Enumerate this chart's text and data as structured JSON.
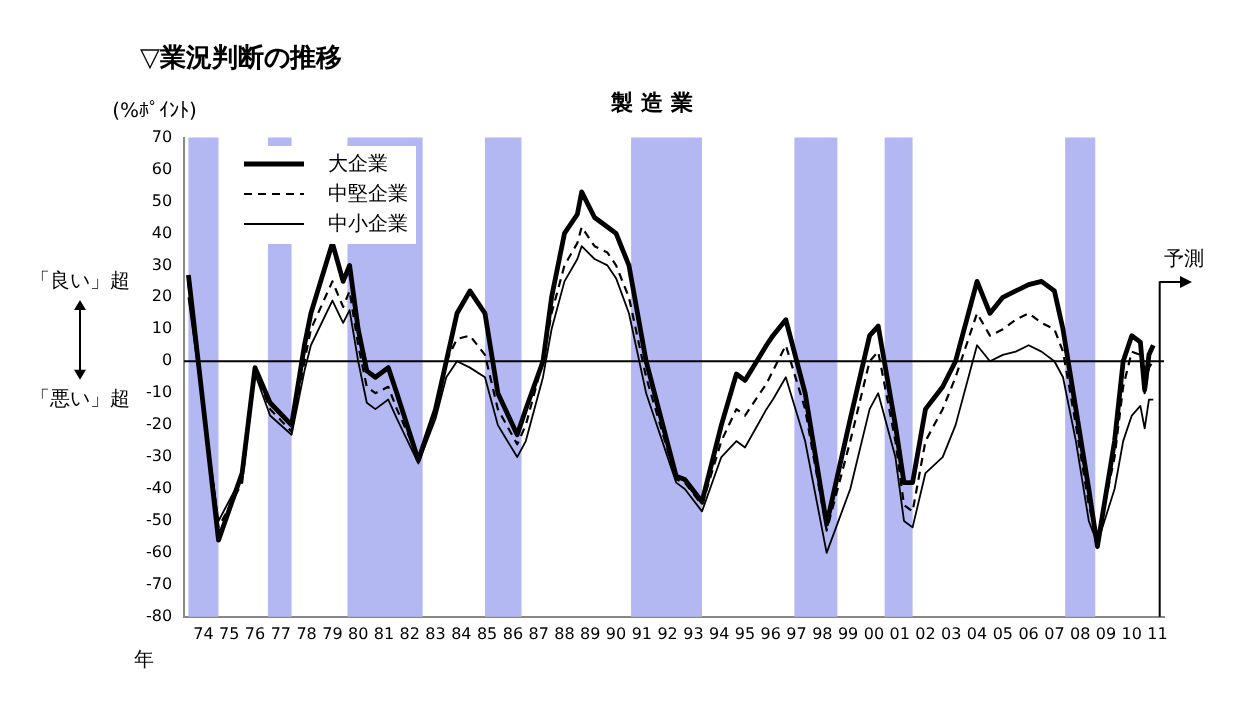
{
  "chart_data": {
    "type": "line",
    "title": "▽業況判断の推移",
    "subtitle": "製 造 業",
    "ylabel": "(%ﾎﾟｲﾝﾄ)",
    "xlabel": "年",
    "annotations": [
      "「良い」超",
      "「悪い」超"
    ],
    "x": [
      "1973-12",
      "1975-02",
      "1976-01",
      "1976-07",
      "1977-02",
      "1977-12",
      "1978-06",
      "1978-09",
      "1979-07",
      "1979-12",
      "1980-03",
      "1980-07",
      "1980-11",
      "1981-03",
      "1981-09",
      "1982-01",
      "1982-11",
      "1983-07",
      "1983-12",
      "1984-05",
      "1984-11",
      "1985-06",
      "1985-12",
      "1986-09",
      "1987-01",
      "1987-09",
      "1988-01",
      "1988-07",
      "1989-01",
      "1989-03",
      "1989-09",
      "1990-03",
      "1990-07",
      "1991-01",
      "1991-09",
      "1992-11",
      "1993-03",
      "1993-11",
      "1994-08",
      "1995-03",
      "1995-07",
      "1996-05",
      "1996-08",
      "1997-02",
      "1997-11",
      "1998-09",
      "1999-08",
      "2000-05",
      "2000-09",
      "2001-05",
      "2001-09",
      "2002-01",
      "2002-07",
      "2003-03",
      "2003-09",
      "2004-07",
      "2005-01",
      "2005-07",
      "2006-01",
      "2006-07",
      "2007-01",
      "2007-07",
      "2007-11",
      "2008-05",
      "2008-11",
      "2009-03",
      "2009-11",
      "2010-03",
      "2010-07",
      "2010-11",
      "2011-01",
      "2011-03",
      "2011-05"
    ],
    "series": [
      {
        "name": "大企業",
        "color": "#000000",
        "line_style": "solid",
        "values": [
          27,
          -56,
          -35,
          -2,
          -13,
          -20,
          5,
          15,
          37,
          25,
          30,
          10,
          -3,
          -5,
          -2,
          -10,
          -31,
          -15,
          0,
          15,
          22,
          15,
          -10,
          -23,
          -15,
          0,
          20,
          40,
          46,
          53,
          45,
          42,
          40,
          30,
          0,
          -36,
          -37,
          -44,
          -20,
          -4,
          -6,
          5,
          8,
          13,
          -10,
          -51,
          -18,
          8,
          11,
          -20,
          -38,
          -38,
          -15,
          -8,
          0,
          25,
          15,
          20,
          22,
          24,
          25,
          22,
          10,
          -15,
          -40,
          -58,
          -25,
          0,
          8,
          6,
          -9,
          2,
          5
        ]
      },
      {
        "name": "中堅企業",
        "color": "#000000",
        "line_style": "dashed",
        "values": [
          24,
          -52,
          -38,
          -3,
          -15,
          -22,
          0,
          10,
          25,
          17,
          22,
          5,
          -8,
          -10,
          -8,
          -15,
          -30,
          -15,
          0,
          7,
          8,
          2,
          -15,
          -26,
          -20,
          0,
          15,
          30,
          37,
          42,
          36,
          34,
          30,
          20,
          -5,
          -37,
          -38,
          -45,
          -25,
          -15,
          -17,
          -7,
          -3,
          5,
          -15,
          -53,
          -25,
          0,
          3,
          -25,
          -45,
          -47,
          -25,
          -15,
          -5,
          15,
          8,
          10,
          13,
          15,
          12,
          10,
          3,
          -20,
          -45,
          -56,
          -30,
          -8,
          3,
          2,
          -10,
          -2,
          0
        ]
      },
      {
        "name": "中小企業",
        "color": "#000000",
        "line_style": "solid",
        "values": [
          20,
          -50,
          -36,
          -4,
          -17,
          -23,
          -3,
          5,
          19,
          12,
          16,
          0,
          -13,
          -15,
          -12,
          -18,
          -32,
          -18,
          -5,
          0,
          -2,
          -5,
          -20,
          -30,
          -25,
          -5,
          10,
          25,
          32,
          36,
          32,
          30,
          26,
          15,
          -10,
          -38,
          -40,
          -47,
          -30,
          -25,
          -27,
          -15,
          -12,
          -5,
          -25,
          -60,
          -40,
          -15,
          -10,
          -30,
          -50,
          -52,
          -35,
          -30,
          -20,
          5,
          0,
          2,
          3,
          5,
          3,
          0,
          -5,
          -25,
          -50,
          -57,
          -40,
          -25,
          -17,
          -14,
          -21,
          -12,
          -12
        ]
      }
    ],
    "xlim": [
      "1973-10",
      "2011-10"
    ],
    "xticks": [
      {
        "value": "1974-07",
        "label": "74"
      },
      {
        "value": "1975-07",
        "label": "75"
      },
      {
        "value": "1976-07",
        "label": "76"
      },
      {
        "value": "1977-07",
        "label": "77"
      },
      {
        "value": "1978-07",
        "label": "78"
      },
      {
        "value": "1979-07",
        "label": "79"
      },
      {
        "value": "1980-07",
        "label": "80"
      },
      {
        "value": "1981-07",
        "label": "81"
      },
      {
        "value": "1982-07",
        "label": "82"
      },
      {
        "value": "1983-07",
        "label": "83"
      },
      {
        "value": "1984-07",
        "label": "84"
      },
      {
        "value": "1985-07",
        "label": "85"
      },
      {
        "value": "1986-07",
        "label": "86"
      },
      {
        "value": "1987-07",
        "label": "87"
      },
      {
        "value": "1988-07",
        "label": "88"
      },
      {
        "value": "1989-07",
        "label": "89"
      },
      {
        "value": "1990-07",
        "label": "90"
      },
      {
        "value": "1991-07",
        "label": "91"
      },
      {
        "value": "1992-07",
        "label": "92"
      },
      {
        "value": "1993-07",
        "label": "93"
      },
      {
        "value": "1994-07",
        "label": "94"
      },
      {
        "value": "1995-07",
        "label": "95"
      },
      {
        "value": "1996-07",
        "label": "96"
      },
      {
        "value": "1997-07",
        "label": "97"
      },
      {
        "value": "1998-07",
        "label": "98"
      },
      {
        "value": "1999-07",
        "label": "99"
      },
      {
        "value": "2000-07",
        "label": "00"
      },
      {
        "value": "2001-07",
        "label": "01"
      },
      {
        "value": "2002-07",
        "label": "02"
      },
      {
        "value": "2003-07",
        "label": "03"
      },
      {
        "value": "2004-07",
        "label": "04"
      },
      {
        "value": "2005-07",
        "label": "05"
      },
      {
        "value": "2006-07",
        "label": "06"
      },
      {
        "value": "2007-07",
        "label": "07"
      },
      {
        "value": "2008-07",
        "label": "08"
      },
      {
        "value": "2009-07",
        "label": "09"
      },
      {
        "value": "2010-07",
        "label": "10"
      },
      {
        "value": "2011-07",
        "label": "11"
      }
    ],
    "ylim": [
      -80,
      70
    ],
    "yticks": [
      -80,
      -70,
      -60,
      -50,
      -40,
      -30,
      -20,
      -10,
      0,
      10,
      20,
      30,
      40,
      50,
      60,
      70
    ],
    "ref_lines": [
      {
        "axis": "y",
        "value": 0,
        "color": "#000000"
      },
      {
        "axis": "x",
        "value": "2011-08",
        "label": "予測",
        "color": "#000000"
      }
    ],
    "bands": [
      {
        "axis": "x",
        "from": "1973-12",
        "to": "1975-02",
        "color": "#b3b8f2"
      },
      {
        "axis": "x",
        "from": "1977-01",
        "to": "1977-12",
        "color": "#b3b8f2"
      },
      {
        "axis": "x",
        "from": "1980-02",
        "to": "1983-01",
        "color": "#b3b8f2"
      },
      {
        "axis": "x",
        "from": "1985-06",
        "to": "1986-11",
        "color": "#b3b8f2"
      },
      {
        "axis": "x",
        "from": "1991-02",
        "to": "1993-11",
        "color": "#b3b8f2"
      },
      {
        "axis": "x",
        "from": "1997-06",
        "to": "1999-02",
        "color": "#b3b8f2"
      },
      {
        "axis": "x",
        "from": "2000-12",
        "to": "2002-01",
        "color": "#b3b8f2"
      },
      {
        "axis": "x",
        "from": "2007-12",
        "to": "2009-02",
        "color": "#b3b8f2"
      }
    ],
    "grid": false,
    "legend": "top left"
  }
}
